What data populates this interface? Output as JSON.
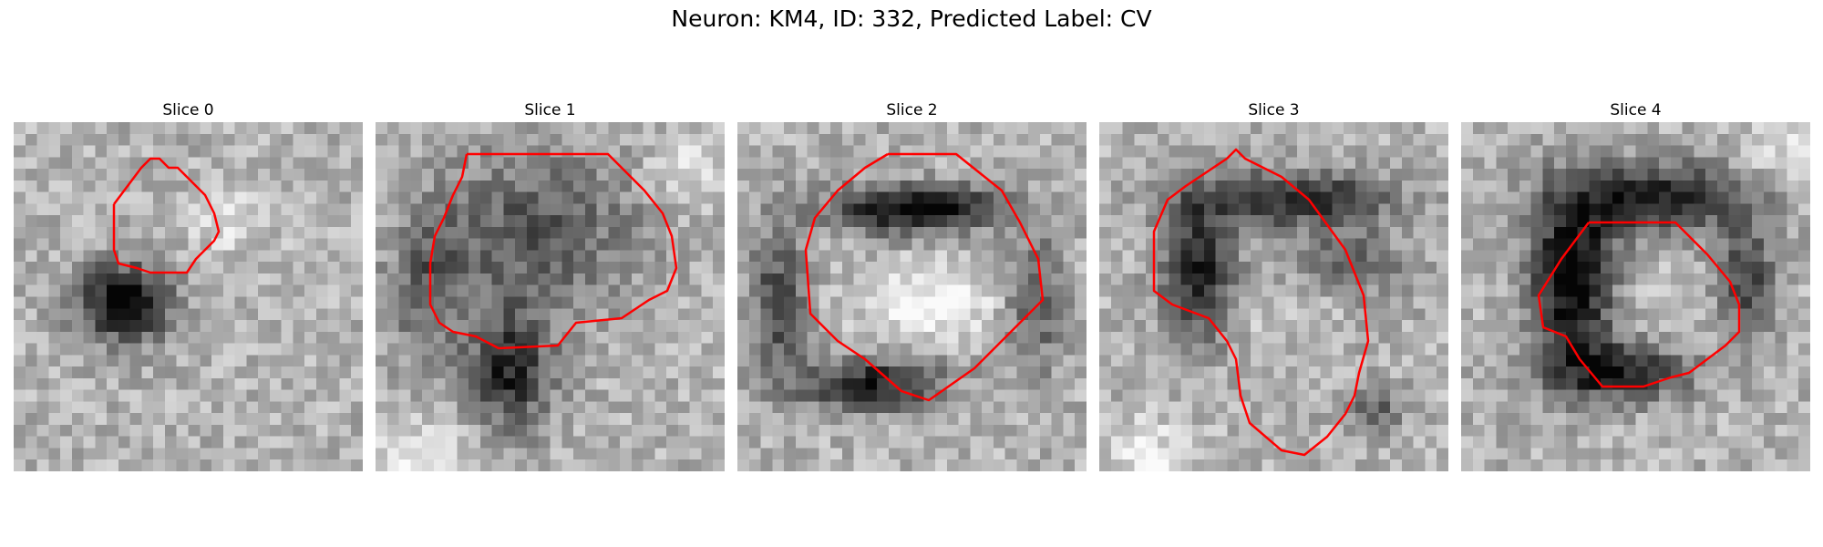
{
  "title": "Neuron: KM4, ID: 332, Predicted Label: CV",
  "colors": {
    "contour": "#ff0000"
  },
  "panels": [
    {
      "label": "Slice 0"
    },
    {
      "label": "Slice 1"
    },
    {
      "label": "Slice 2"
    },
    {
      "label": "Slice 3"
    },
    {
      "label": "Slice 4"
    }
  ]
}
